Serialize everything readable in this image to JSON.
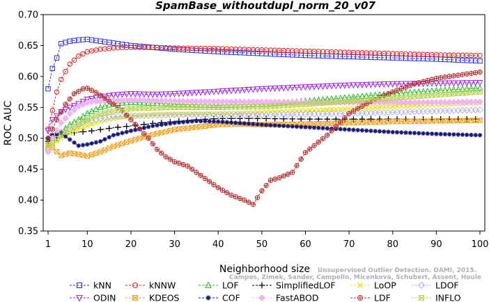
{
  "chart_data": {
    "type": "line",
    "title": "SpamBase_withoutdupl_norm_20_v07",
    "xlabel": "Neighborhood size",
    "ylabel": "ROC AUC",
    "xlim": [
      1,
      100
    ],
    "ylim": [
      0.35,
      0.7
    ],
    "xticks": [
      1,
      10,
      20,
      30,
      40,
      50,
      60,
      70,
      80,
      90,
      100
    ],
    "yticks": [
      "0.35",
      "0.40",
      "0.45",
      "0.50",
      "0.55",
      "0.60",
      "0.65",
      "0.70"
    ],
    "grid": false,
    "legend_position": "bottom",
    "watermark": [
      "Campos, Zimek, Sander, Campello, Micenkova, Schubert, Assent, Houle",
      "Unsupervised Outlier Detection. DAMI, 2015."
    ],
    "series": [
      {
        "name": "kNN",
        "color": "#2a2ae6",
        "marker": "square",
        "dash": "3,2",
        "x": [
          1,
          2,
          3,
          4,
          6,
          8,
          10,
          13,
          16,
          20,
          25,
          30,
          40,
          50,
          60,
          70,
          80,
          90,
          100
        ],
        "y": [
          0.58,
          0.613,
          0.63,
          0.653,
          0.657,
          0.659,
          0.66,
          0.657,
          0.654,
          0.65,
          0.647,
          0.644,
          0.64,
          0.637,
          0.634,
          0.632,
          0.63,
          0.628,
          0.625
        ]
      },
      {
        "name": "kNNW",
        "color": "#e61e1e",
        "marker": "circle",
        "dash": "3,2",
        "x": [
          1,
          2,
          3,
          4,
          5,
          6,
          8,
          10,
          13,
          16,
          20,
          25,
          30,
          40,
          50,
          60,
          70,
          80,
          90,
          100
        ],
        "y": [
          0.515,
          0.545,
          0.575,
          0.595,
          0.608,
          0.62,
          0.633,
          0.64,
          0.644,
          0.646,
          0.647,
          0.647,
          0.646,
          0.645,
          0.643,
          0.641,
          0.639,
          0.637,
          0.635,
          0.634
        ]
      },
      {
        "name": "LOF",
        "color": "#1fc01f",
        "marker": "triangle",
        "dash": "3,2",
        "x": [
          1,
          2,
          4,
          6,
          8,
          10,
          13,
          16,
          20,
          25,
          30,
          40,
          50,
          60,
          70,
          80,
          90,
          100
        ],
        "y": [
          0.485,
          0.5,
          0.51,
          0.522,
          0.53,
          0.54,
          0.55,
          0.556,
          0.558,
          0.557,
          0.555,
          0.553,
          0.555,
          0.56,
          0.566,
          0.572,
          0.577,
          0.581
        ]
      },
      {
        "name": "SimplifiedLOF",
        "color": "#000000",
        "marker": "plus",
        "dash": "3,2",
        "x": [
          1,
          2,
          4,
          6,
          8,
          10,
          13,
          16,
          20,
          25,
          30,
          35,
          40,
          50,
          60,
          70,
          80,
          90,
          100
        ],
        "y": [
          0.495,
          0.498,
          0.503,
          0.508,
          0.51,
          0.511,
          0.514,
          0.517,
          0.52,
          0.524,
          0.527,
          0.53,
          0.532,
          0.532,
          0.531,
          0.531,
          0.531,
          0.531,
          0.531
        ]
      },
      {
        "name": "LoOP",
        "color": "#e6e61e",
        "marker": "x",
        "dash": "3,2",
        "x": [
          1,
          2,
          4,
          6,
          8,
          10,
          13,
          16,
          20,
          25,
          30,
          40,
          50,
          60,
          70,
          80,
          90,
          100
        ],
        "y": [
          0.48,
          0.49,
          0.5,
          0.508,
          0.515,
          0.52,
          0.527,
          0.532,
          0.536,
          0.538,
          0.539,
          0.54,
          0.542,
          0.545,
          0.548,
          0.551,
          0.554,
          0.557
        ]
      },
      {
        "name": "LDOF",
        "color": "#b4b4e6",
        "marker": "diamond",
        "dash": "3,2",
        "x": [
          1,
          2,
          4,
          6,
          8,
          10,
          13,
          16,
          20,
          25,
          30,
          40,
          50,
          60,
          70,
          80,
          90,
          100
        ],
        "y": [
          0.5,
          0.505,
          0.51,
          0.515,
          0.522,
          0.528,
          0.532,
          0.535,
          0.536,
          0.537,
          0.538,
          0.538,
          0.538,
          0.539,
          0.54,
          0.542,
          0.544,
          0.546
        ]
      },
      {
        "name": "ODIN",
        "color": "#a01ee6",
        "marker": "triangle-down",
        "dash": "3,2",
        "x": [
          1,
          2,
          4,
          6,
          8,
          10,
          13,
          16,
          20,
          25,
          30,
          40,
          50,
          60,
          70,
          80,
          90,
          100
        ],
        "y": [
          0.512,
          0.53,
          0.543,
          0.55,
          0.556,
          0.563,
          0.567,
          0.57,
          0.572,
          0.571,
          0.572,
          0.576,
          0.58,
          0.583,
          0.586,
          0.588,
          0.589,
          0.59
        ]
      },
      {
        "name": "KDEOS",
        "color": "#f0a01e",
        "marker": "squarex",
        "dash": "3,2",
        "x": [
          1,
          2,
          4,
          6,
          8,
          10,
          13,
          16,
          20,
          25,
          30,
          40,
          45,
          50,
          60,
          70,
          80,
          90,
          100
        ],
        "y": [
          0.488,
          0.485,
          0.472,
          0.476,
          0.474,
          0.471,
          0.478,
          0.487,
          0.496,
          0.506,
          0.514,
          0.522,
          0.523,
          0.522,
          0.523,
          0.525,
          0.527,
          0.528,
          0.529
        ]
      },
      {
        "name": "COF",
        "color": "#141478",
        "marker": "asterisk",
        "dash": "3,2",
        "x": [
          1,
          2,
          4,
          6,
          8,
          10,
          13,
          16,
          20,
          25,
          30,
          35,
          40,
          50,
          60,
          70,
          80,
          90,
          100
        ],
        "y": [
          0.5,
          0.505,
          0.508,
          0.498,
          0.488,
          0.49,
          0.495,
          0.505,
          0.512,
          0.52,
          0.525,
          0.528,
          0.527,
          0.522,
          0.518,
          0.514,
          0.51,
          0.507,
          0.505
        ]
      },
      {
        "name": "FastABOD",
        "color": "#f0b4f0",
        "marker": "diamond-filled",
        "dash": "3,2",
        "x": [
          1,
          2,
          4,
          6,
          8,
          10,
          13,
          16,
          20,
          25,
          30,
          40,
          50,
          60,
          70,
          80,
          90,
          100
        ],
        "y": [
          0.478,
          0.5,
          0.525,
          0.54,
          0.552,
          0.558,
          0.56,
          0.561,
          0.562,
          0.561,
          0.56,
          0.559,
          0.559,
          0.558,
          0.558,
          0.558,
          0.558,
          0.559
        ]
      },
      {
        "name": "LDF",
        "color": "#b43232",
        "marker": "circle-plus",
        "dash": "3,2",
        "x": [
          1,
          3,
          5,
          7,
          9,
          10,
          12,
          14,
          16,
          18,
          20,
          22,
          24,
          26,
          28,
          30,
          33,
          36,
          40,
          43,
          46,
          48,
          50,
          52,
          54,
          57,
          60,
          65,
          70,
          75,
          80,
          85,
          90,
          95,
          100
        ],
        "y": [
          0.5,
          0.53,
          0.555,
          0.572,
          0.58,
          0.581,
          0.574,
          0.565,
          0.555,
          0.545,
          0.53,
          0.515,
          0.5,
          0.482,
          0.47,
          0.462,
          0.455,
          0.44,
          0.42,
          0.408,
          0.4,
          0.393,
          0.415,
          0.432,
          0.436,
          0.445,
          0.477,
          0.505,
          0.54,
          0.56,
          0.575,
          0.588,
          0.597,
          0.602,
          0.607
        ]
      },
      {
        "name": "INFLO",
        "color": "#b4d250",
        "marker": "squarex",
        "dash": "3,2",
        "x": [
          1,
          2,
          4,
          6,
          8,
          10,
          13,
          16,
          20,
          25,
          30,
          40,
          50,
          60,
          70,
          80,
          90,
          100
        ],
        "y": [
          0.49,
          0.492,
          0.505,
          0.515,
          0.523,
          0.53,
          0.539,
          0.544,
          0.548,
          0.549,
          0.55,
          0.55,
          0.551,
          0.555,
          0.56,
          0.565,
          0.57,
          0.575
        ]
      }
    ]
  }
}
